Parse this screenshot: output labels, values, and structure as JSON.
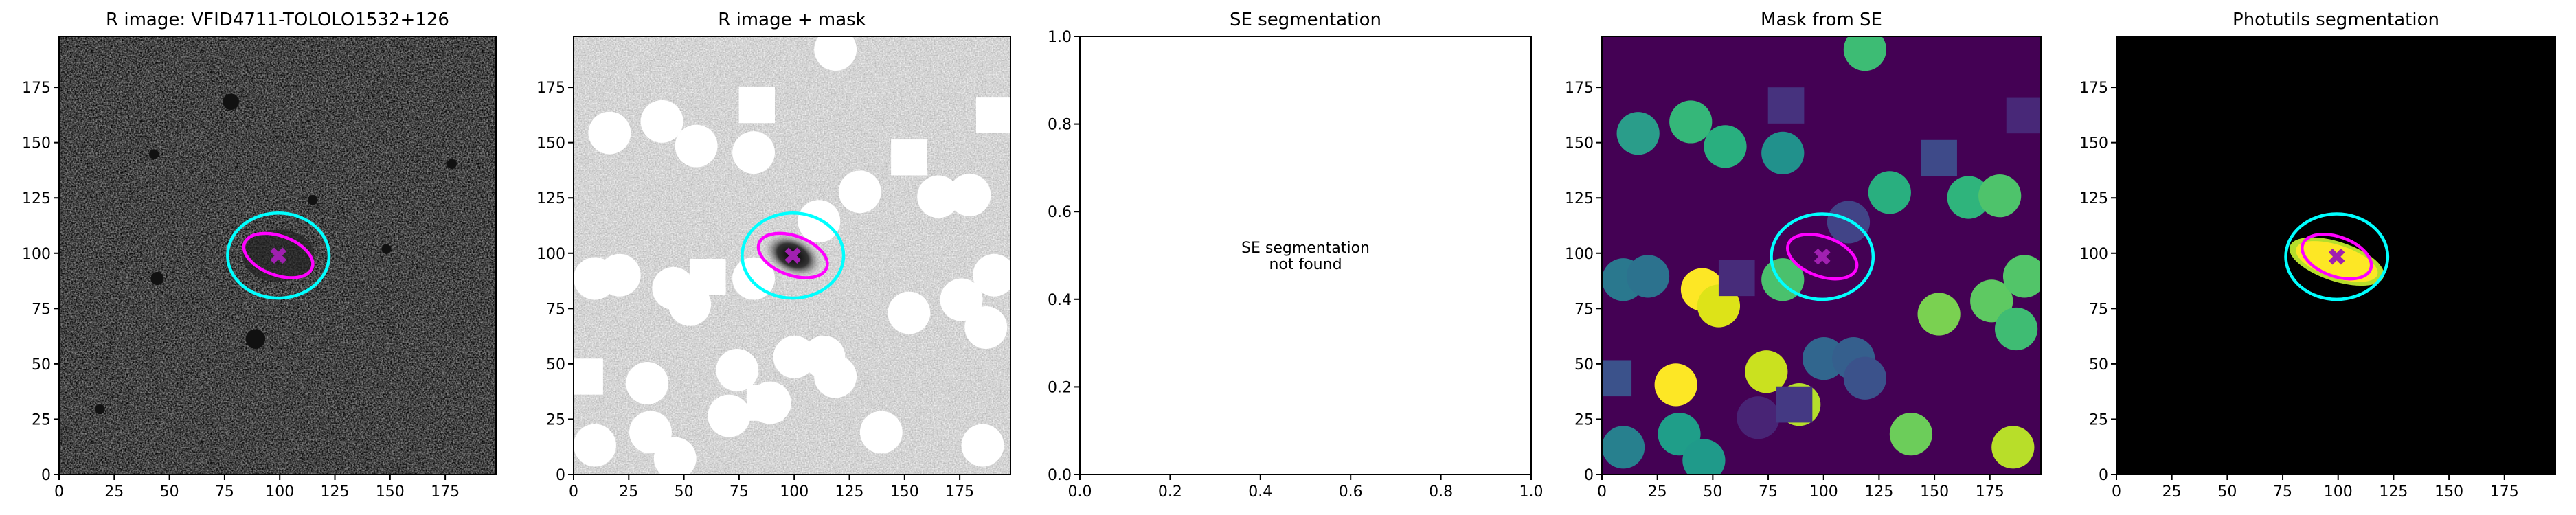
{
  "chart_data": [
    {
      "type": "image",
      "title": "R image: VFID4711-TOLOLO1532+126",
      "xlim": [
        0,
        198
      ],
      "ylim": [
        0,
        198
      ],
      "xticks": [
        0,
        25,
        50,
        75,
        100,
        125,
        150,
        175
      ],
      "yticks": [
        0,
        25,
        50,
        75,
        100,
        125,
        150,
        175
      ]
    },
    {
      "type": "image",
      "title": "R image + mask",
      "xlim": [
        0,
        198
      ],
      "ylim": [
        0,
        198
      ],
      "xticks": [
        0,
        25,
        50,
        75,
        100,
        125,
        150,
        175
      ],
      "yticks": [
        0,
        25,
        50,
        75,
        100,
        125,
        150,
        175
      ]
    },
    {
      "type": "empty",
      "title": "SE segmentation",
      "annotation": "SE segmentation\nnot found",
      "xlim": [
        0,
        1
      ],
      "ylim": [
        0,
        1
      ],
      "xticks": [
        {
          "value": 0,
          "label": "0.0"
        },
        {
          "value": 0.2,
          "label": "0.2"
        },
        {
          "value": 0.4,
          "label": "0.4"
        },
        {
          "value": 0.6,
          "label": "0.6"
        },
        {
          "value": 0.8,
          "label": "0.8"
        },
        {
          "value": 1,
          "label": "1.0"
        }
      ],
      "yticks": [
        {
          "value": 0,
          "label": "0.0"
        },
        {
          "value": 0.2,
          "label": "0.2"
        },
        {
          "value": 0.4,
          "label": "0.4"
        },
        {
          "value": 0.6,
          "label": "0.6"
        },
        {
          "value": 0.8,
          "label": "0.8"
        },
        {
          "value": 1,
          "label": "1.0"
        }
      ]
    },
    {
      "type": "image",
      "title": "Mask from SE",
      "xlim": [
        0,
        198
      ],
      "ylim": [
        0,
        198
      ],
      "xticks": [
        0,
        25,
        50,
        75,
        100,
        125,
        150,
        175
      ],
      "yticks": [
        0,
        25,
        50,
        75,
        100,
        125,
        150,
        175
      ]
    },
    {
      "type": "image",
      "title": "Photutils segmentation",
      "xlim": [
        0,
        198
      ],
      "ylim": [
        0,
        198
      ],
      "xticks": [
        0,
        25,
        50,
        75,
        100,
        125,
        150,
        175
      ],
      "yticks": [
        0,
        25,
        50,
        75,
        100,
        125,
        150,
        175
      ]
    }
  ]
}
